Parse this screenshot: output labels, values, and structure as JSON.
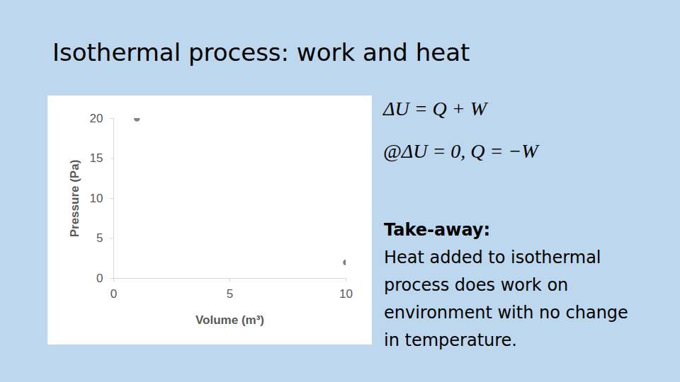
{
  "slide": {
    "title": "Isothermal process: work and heat",
    "equations": [
      "ΔU = Q + W",
      "@ΔU = 0,  Q = −W"
    ],
    "takeaway_heading": "Take-away:",
    "takeaway_lines": [
      "Heat added to isothermal",
      "process does work on",
      "environment with no change",
      "in temperature."
    ]
  },
  "chart_data": {
    "type": "scatter",
    "x": [
      1,
      10
    ],
    "values": [
      20,
      2
    ],
    "x_label": "Volume (m³)",
    "y_label": "Pressure (Pa)",
    "xlim": [
      0,
      10
    ],
    "ylim": [
      0,
      20
    ],
    "xticks": [
      0,
      5,
      10
    ],
    "yticks": [
      0,
      5,
      10,
      15,
      20
    ],
    "color": "#808080",
    "marker": "circle",
    "grid": false
  }
}
